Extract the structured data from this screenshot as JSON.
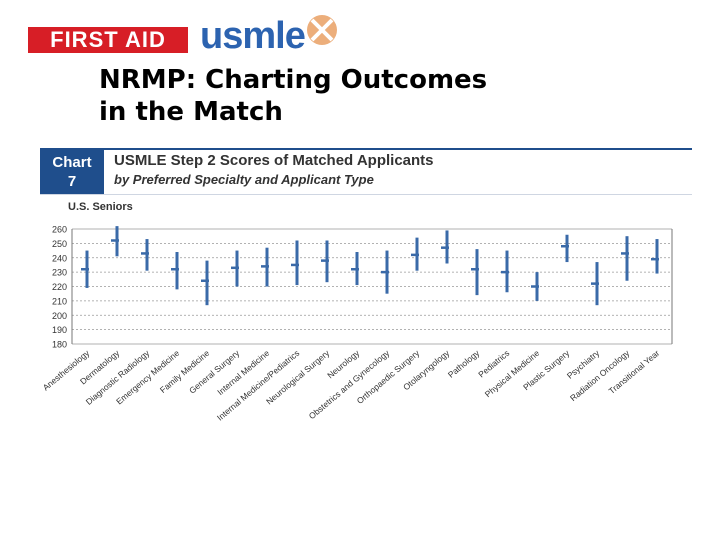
{
  "branding": {
    "first_aid_label": "FIRST AID",
    "usmle_label": "usmle"
  },
  "slide": {
    "title_line1": "NRMP: Charting Outcomes",
    "title_line2": "in the Match"
  },
  "chart_badge": {
    "line1": "Chart",
    "line2": "7"
  },
  "chart_data": {
    "type": "box",
    "title": "USMLE Step 2 Scores of Matched Applicants",
    "subtitle": "by Preferred Specialty and Applicant Type",
    "panel_label": "U.S. Seniors",
    "ylim": [
      180,
      260
    ],
    "yticks": [
      180,
      190,
      200,
      210,
      220,
      230,
      240,
      250,
      260
    ],
    "grid": true,
    "colors": {
      "bar": "#3a6aa8",
      "grid": "#999999",
      "axis": "#777777"
    },
    "categories": [
      "Anesthesiology",
      "Dermatology",
      "Diagnostic Radiology",
      "Emergency Medicine",
      "Family Medicine",
      "General Surgery",
      "Internal Medicine",
      "Internal Medicine/Pediatrics",
      "Neurological Surgery",
      "Neurology",
      "Obstetrics and Gynecology",
      "Orthopaedic Surgery",
      "Otolaryngology",
      "Pathology",
      "Pediatrics",
      "Physical Medicine",
      "Plastic Surgery",
      "Psychiatry",
      "Radiation Oncology",
      "Transitional Year"
    ],
    "series": [
      {
        "values": [
          {
            "low": 219,
            "high": 245,
            "median": 232
          },
          {
            "low": 241,
            "high": 262,
            "median": 252
          },
          {
            "low": 231,
            "high": 253,
            "median": 243
          },
          {
            "low": 218,
            "high": 244,
            "median": 232
          },
          {
            "low": 207,
            "high": 238,
            "median": 224
          },
          {
            "low": 220,
            "high": 245,
            "median": 233
          },
          {
            "low": 220,
            "high": 247,
            "median": 234
          },
          {
            "low": 221,
            "high": 252,
            "median": 235
          },
          {
            "low": 223,
            "high": 252,
            "median": 238
          },
          {
            "low": 221,
            "high": 244,
            "median": 232
          },
          {
            "low": 215,
            "high": 245,
            "median": 230
          },
          {
            "low": 231,
            "high": 254,
            "median": 242
          },
          {
            "low": 236,
            "high": 259,
            "median": 247
          },
          {
            "low": 214,
            "high": 246,
            "median": 232
          },
          {
            "low": 216,
            "high": 245,
            "median": 230
          },
          {
            "low": 210,
            "high": 230,
            "median": 220
          },
          {
            "low": 237,
            "high": 256,
            "median": 248
          },
          {
            "low": 207,
            "high": 237,
            "median": 222
          },
          {
            "low": 224,
            "high": 255,
            "median": 243
          },
          {
            "low": 229,
            "high": 253,
            "median": 239
          }
        ]
      }
    ]
  }
}
